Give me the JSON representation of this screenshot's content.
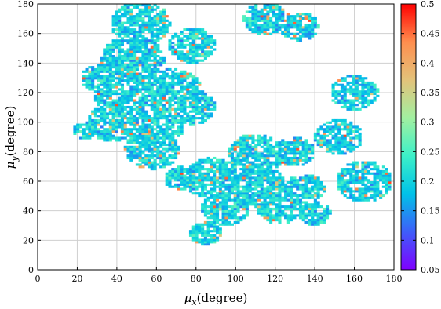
{
  "chart_data": {
    "type": "heatmap",
    "title": "",
    "xlabel": {
      "symbol": "μ",
      "sub": "x",
      "unit": "(degree)"
    },
    "ylabel": {
      "symbol": "μ",
      "sub": "y",
      "unit": "(degree)"
    },
    "xlim": [
      0,
      180
    ],
    "ylim": [
      0,
      180
    ],
    "xticks": [
      0,
      20,
      40,
      60,
      80,
      100,
      120,
      140,
      160,
      180
    ],
    "yticks": [
      0,
      20,
      40,
      60,
      80,
      100,
      120,
      140,
      160,
      180
    ],
    "grid": true,
    "colorbar": {
      "min": 0.05,
      "max": 0.5,
      "ticks": [
        0.05,
        0.1,
        0.15,
        0.2,
        0.25,
        0.3,
        0.35,
        0.4,
        0.45,
        0.5
      ],
      "colormap": [
        "#7f00ff",
        "#3e5ef9",
        "#00c2e8",
        "#3cf0c8",
        "#a2f0a0",
        "#e3c27a",
        "#ff8e4e",
        "#ff0000"
      ]
    },
    "cell_size_deg": 1.5,
    "clusters": [
      {
        "x": 52,
        "y": 167,
        "r": 15
      },
      {
        "x": 78,
        "y": 152,
        "r": 12
      },
      {
        "x": 115,
        "y": 170,
        "r": 11
      },
      {
        "x": 132,
        "y": 165,
        "r": 10
      },
      {
        "x": 48,
        "y": 143,
        "r": 16
      },
      {
        "x": 32,
        "y": 130,
        "r": 10
      },
      {
        "x": 42,
        "y": 120,
        "r": 14
      },
      {
        "x": 68,
        "y": 120,
        "r": 16
      },
      {
        "x": 38,
        "y": 100,
        "r": 13
      },
      {
        "x": 60,
        "y": 98,
        "r": 14
      },
      {
        "x": 78,
        "y": 110,
        "r": 12
      },
      {
        "x": 58,
        "y": 82,
        "r": 14
      },
      {
        "x": 24,
        "y": 94,
        "r": 6
      },
      {
        "x": 160,
        "y": 120,
        "r": 12
      },
      {
        "x": 152,
        "y": 90,
        "r": 12
      },
      {
        "x": 165,
        "y": 60,
        "r": 14
      },
      {
        "x": 110,
        "y": 78,
        "r": 14
      },
      {
        "x": 130,
        "y": 80,
        "r": 10
      },
      {
        "x": 88,
        "y": 62,
        "r": 14
      },
      {
        "x": 112,
        "y": 56,
        "r": 14
      },
      {
        "x": 135,
        "y": 55,
        "r": 10
      },
      {
        "x": 95,
        "y": 42,
        "r": 12
      },
      {
        "x": 122,
        "y": 42,
        "r": 11
      },
      {
        "x": 140,
        "y": 38,
        "r": 8
      },
      {
        "x": 85,
        "y": 25,
        "r": 8
      },
      {
        "x": 72,
        "y": 62,
        "r": 8
      }
    ]
  }
}
